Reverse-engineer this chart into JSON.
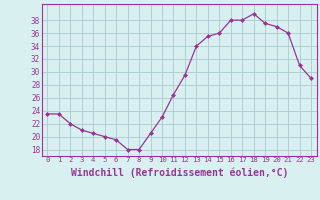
{
  "x": [
    0,
    1,
    2,
    3,
    4,
    5,
    6,
    7,
    8,
    9,
    10,
    11,
    12,
    13,
    14,
    15,
    16,
    17,
    18,
    19,
    20,
    21,
    22,
    23
  ],
  "y": [
    23.5,
    23.5,
    22,
    21,
    20.5,
    20,
    19.5,
    18,
    18,
    20.5,
    23,
    26.5,
    29.5,
    34,
    35.5,
    36,
    38,
    38,
    39,
    37.5,
    37,
    36,
    31,
    29
  ],
  "line_color": "#993399",
  "marker": "D",
  "marker_size": 2.5,
  "bg_color": "#d9f0f0",
  "grid_color": "#aacccc",
  "xlabel": "Windchill (Refroidissement éolien,°C)",
  "xlabel_fontsize": 7,
  "yticks": [
    18,
    20,
    22,
    24,
    26,
    28,
    30,
    32,
    34,
    36,
    38
  ],
  "ylim": [
    17.0,
    40.5
  ],
  "xlim": [
    -0.5,
    23.5
  ],
  "xticks": [
    0,
    1,
    2,
    3,
    4,
    5,
    6,
    7,
    8,
    9,
    10,
    11,
    12,
    13,
    14,
    15,
    16,
    17,
    18,
    19,
    20,
    21,
    22,
    23
  ],
  "xtick_labels": [
    "0",
    "1",
    "2",
    "3",
    "4",
    "5",
    "6",
    "7",
    "8",
    "9",
    "10",
    "11",
    "12",
    "13",
    "14",
    "15",
    "16",
    "17",
    "18",
    "19",
    "20",
    "21",
    "22",
    "23"
  ]
}
